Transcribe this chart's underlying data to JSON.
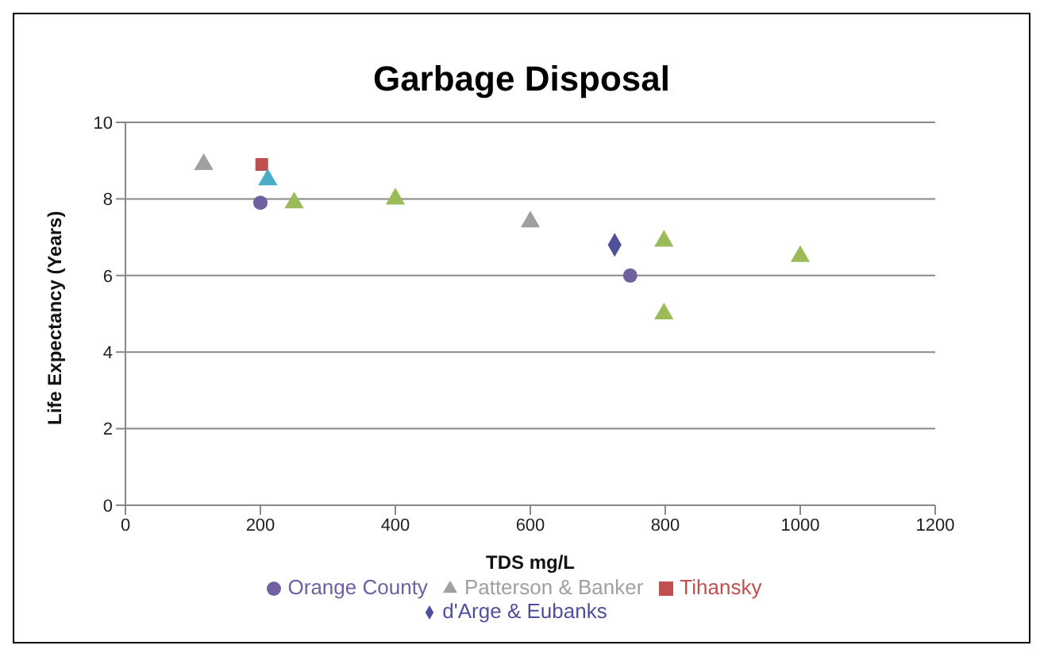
{
  "chart_data": {
    "type": "scatter",
    "title": "Garbage Disposal",
    "xlabel": "TDS mg/L",
    "ylabel": "Life Expectancy (Years)",
    "xlim": [
      0,
      1200
    ],
    "xticks": [
      0,
      200,
      400,
      600,
      800,
      1000,
      1200
    ],
    "ylim": [
      0,
      10
    ],
    "yticks": [
      0,
      2,
      4,
      6,
      8,
      10
    ],
    "grid": "y",
    "legend": "bottom",
    "series": [
      {
        "name": "d'Arge & Eubanks",
        "color": "#4f4f9b",
        "marker": "diamond",
        "x": [
          725
        ],
        "values": [
          6.8
        ]
      },
      {
        "name": "Tihansky",
        "color": "#c0504d",
        "marker": "square",
        "x": [
          202
        ],
        "values": [
          8.9
        ]
      },
      {
        "name": "Patterson & Banker",
        "color": "#a0a0a0",
        "marker": "triangle",
        "x": [
          116,
          600
        ],
        "values": [
          8.9,
          7.4
        ]
      },
      {
        "name": "Orange County",
        "color": "#7060a0",
        "marker": "circle",
        "x": [
          200,
          748
        ],
        "values": [
          7.9,
          6.0
        ]
      },
      {
        "color": "#9bbb59",
        "marker": "triangle",
        "x": [
          250,
          400,
          798,
          798,
          1000
        ],
        "values": [
          7.9,
          8.0,
          6.9,
          5.0,
          6.5
        ]
      },
      {
        "color": "#4bacc6",
        "marker": "triangle",
        "x": [
          211
        ],
        "values": [
          8.5
        ]
      }
    ]
  }
}
